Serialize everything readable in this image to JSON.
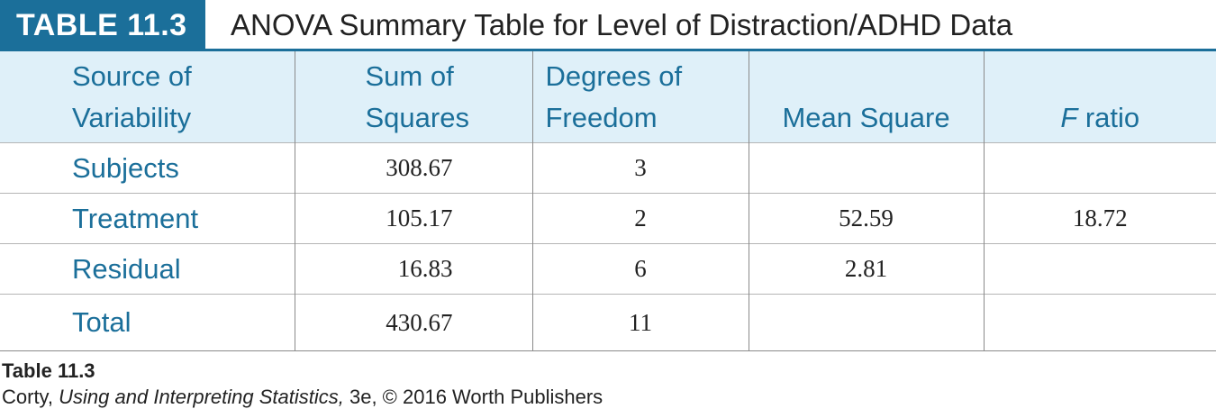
{
  "header": {
    "badge": "TABLE 11.3",
    "title": "ANOVA Summary Table for Level of Distraction/ADHD Data"
  },
  "table": {
    "columns": [
      {
        "line1": "Source of",
        "line2": "Variability"
      },
      {
        "line1": "Sum of",
        "line2": "Squares"
      },
      {
        "line1": "Degrees of",
        "line2": "Freedom"
      },
      {
        "line1": "",
        "line2": "Mean Square"
      },
      {
        "line1": "",
        "line2_italic": "F",
        "line2": " ratio"
      }
    ],
    "rows": [
      {
        "source": "Subjects",
        "ss": "308.67",
        "df": "3",
        "ms": "",
        "f": ""
      },
      {
        "source": "Treatment",
        "ss": "105.17",
        "df": "2",
        "ms": "52.59",
        "f": "18.72"
      },
      {
        "source": "Residual",
        "ss": "16.83",
        "df": "6",
        "ms": "2.81",
        "f": ""
      },
      {
        "source": "Total",
        "ss": "430.67",
        "df": "11",
        "ms": "",
        "f": ""
      }
    ]
  },
  "footer": {
    "caption_title": "Table 11.3",
    "source_author": "Corty, ",
    "source_book": "Using and Interpreting Statistics,",
    "source_rest": " 3e, © 2016 Worth Publishers"
  },
  "colors": {
    "accent": "#1b6f9a",
    "header_fill": "#dff0f9"
  }
}
